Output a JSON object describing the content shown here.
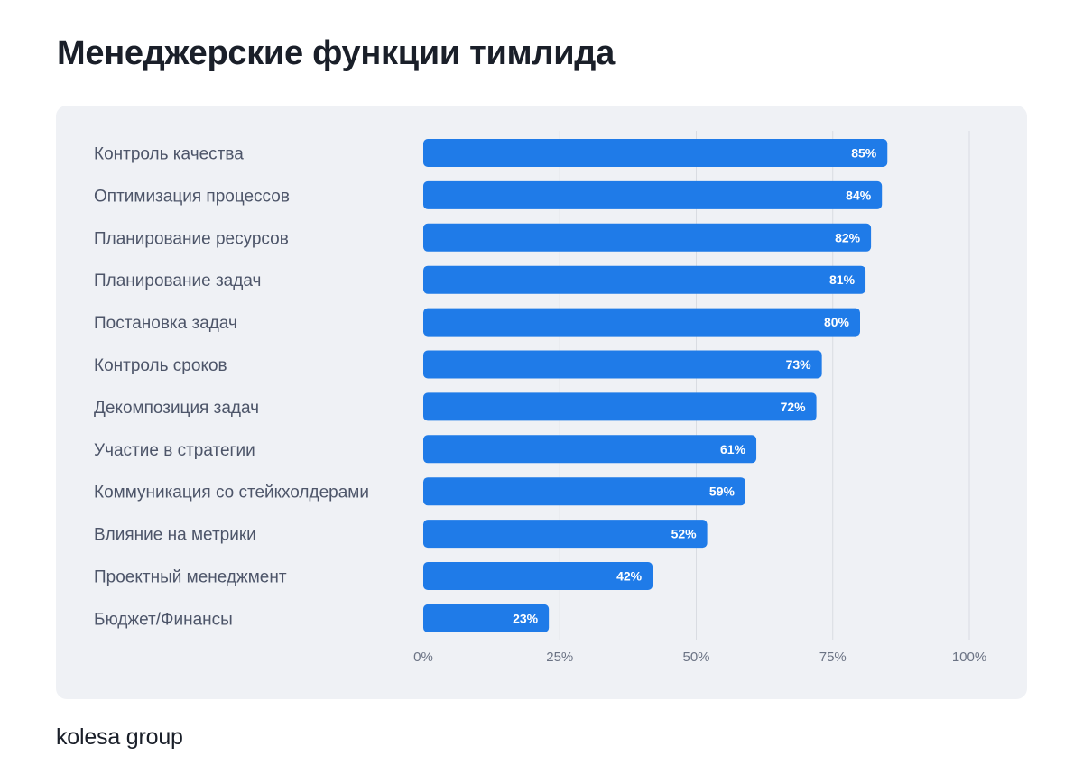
{
  "page": {
    "title": "Менеджерские функции тимлида",
    "brand": "kolesa group"
  },
  "colors": {
    "bar": "#1f7be8",
    "panel_bg": "#eff1f5",
    "value_text": "#ffffff"
  },
  "chart_data": {
    "type": "bar",
    "orientation": "horizontal",
    "title": "",
    "xlabel": "",
    "ylabel": "",
    "xlim": [
      0,
      100
    ],
    "x_ticks": [
      0,
      25,
      50,
      75,
      100
    ],
    "x_tick_labels": [
      "0%",
      "25%",
      "50%",
      "75%",
      "100%"
    ],
    "grid": true,
    "categories": [
      "Контроль качества",
      "Оптимизация процессов",
      "Планирование ресурсов",
      "Планирование задач",
      "Постановка задач",
      "Контроль сроков",
      "Декомпозиция задач",
      "Участие в стратегии",
      "Коммуникация со стейкхолдерами",
      "Влияние на метрики",
      "Проектный менеджмент",
      "Бюджет/Финансы"
    ],
    "values": [
      85,
      84,
      82,
      81,
      80,
      73,
      72,
      61,
      59,
      52,
      42,
      23
    ],
    "value_labels": [
      "85%",
      "84%",
      "82%",
      "81%",
      "80%",
      "73%",
      "72%",
      "61%",
      "59%",
      "52%",
      "42%",
      "23%"
    ]
  }
}
